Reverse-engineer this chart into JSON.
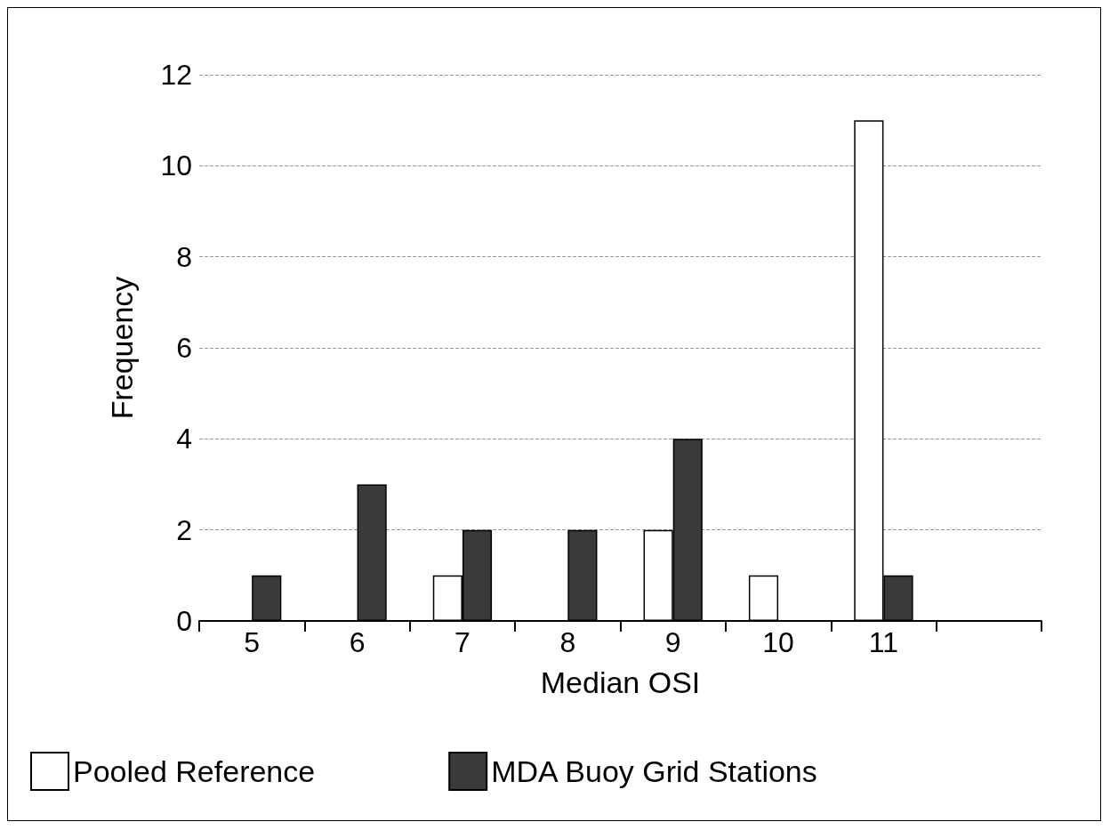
{
  "chart_data": {
    "type": "bar",
    "xlabel": "Median OSI",
    "ylabel": "Frequency",
    "categories": [
      "5",
      "6",
      "7",
      "8",
      "9",
      "10",
      "11",
      null
    ],
    "series": [
      {
        "name": "Pooled Reference",
        "color": "#ffffff",
        "values": [
          null,
          null,
          1,
          null,
          2,
          1,
          11,
          null
        ]
      },
      {
        "name": "MDA Buoy Grid Stations",
        "color": "#3a3a3a",
        "values": [
          1,
          3,
          2,
          2,
          4,
          null,
          1,
          null
        ]
      }
    ],
    "ylim": [
      0,
      12
    ],
    "yticks": [
      0,
      2,
      4,
      6,
      8,
      10,
      12
    ],
    "grid": "y",
    "legend": "bottom"
  }
}
